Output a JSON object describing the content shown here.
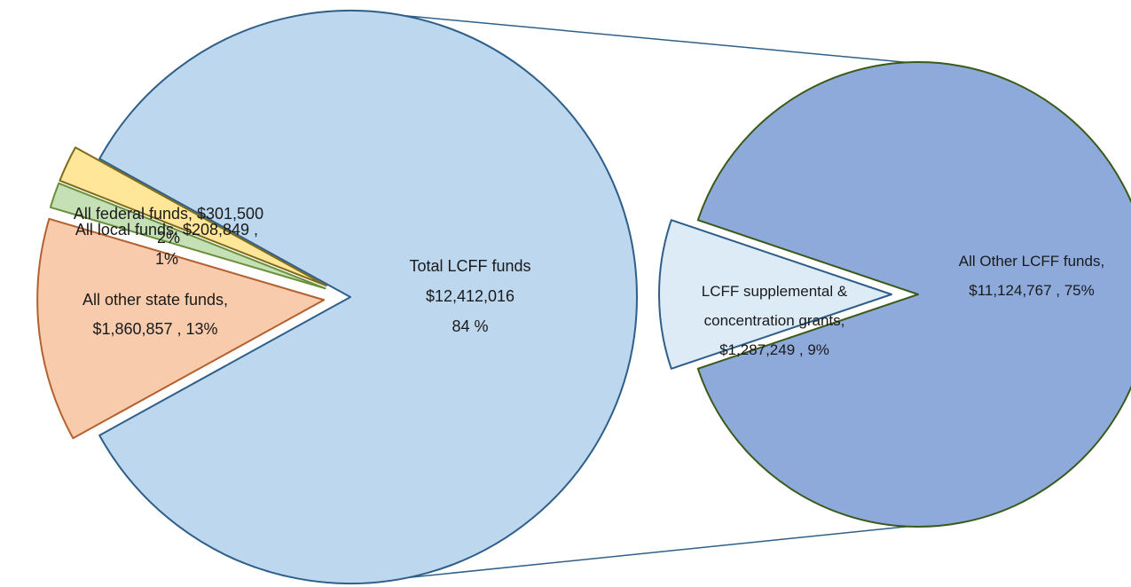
{
  "chart_data": [
    {
      "type": "pie",
      "variant": "pie-of-pie-primary",
      "slices": [
        {
          "name": "Total LCFF funds",
          "value": 12412016,
          "percent": 84,
          "label_lines": [
            "Total LCFF funds",
            "$12,412,016",
            "84 %"
          ],
          "color": "#bdd7ee",
          "stroke": "#2e5f8a",
          "exploded": false
        },
        {
          "name": "All other state funds",
          "value": 1860857,
          "percent": 13,
          "label_lines": [
            "All other state funds,",
            "$1,860,857 , 13%"
          ],
          "color": "#f8cbad",
          "stroke": "#b3612f",
          "exploded": true
        },
        {
          "name": "All local funds",
          "value": 208849,
          "percent": 1,
          "label_lines": [
            "All local funds, $208,849 ,",
            "1%"
          ],
          "color": "#c5e0b4",
          "stroke": "#6a8f3a",
          "exploded": true
        },
        {
          "name": "All federal funds",
          "value": 301500,
          "percent": 2,
          "label_lines": [
            "All federal funds, $301,500",
            "2%"
          ],
          "color": "#ffe699",
          "stroke": "#7f6a1a",
          "exploded": true
        }
      ]
    },
    {
      "type": "pie",
      "variant": "pie-of-pie-secondary",
      "breakout_of": "Total LCFF funds",
      "slices": [
        {
          "name": "All Other LCFF funds",
          "value": 11124767,
          "percent": 75,
          "label_lines": [
            "All Other LCFF funds,",
            "$11,124,767 , 75%"
          ],
          "color": "#8eaadb",
          "stroke": "#3a5a1a",
          "exploded": false
        },
        {
          "name": "LCFF supplemental & concentration grants",
          "value": 1287249,
          "percent": 9,
          "label_lines": [
            "LCFF supplemental &",
            "concentration grants,",
            "$1,287,249 , 9%"
          ],
          "color": "#ddebf7",
          "stroke": "#2e5f8a",
          "exploded": true
        }
      ]
    }
  ]
}
